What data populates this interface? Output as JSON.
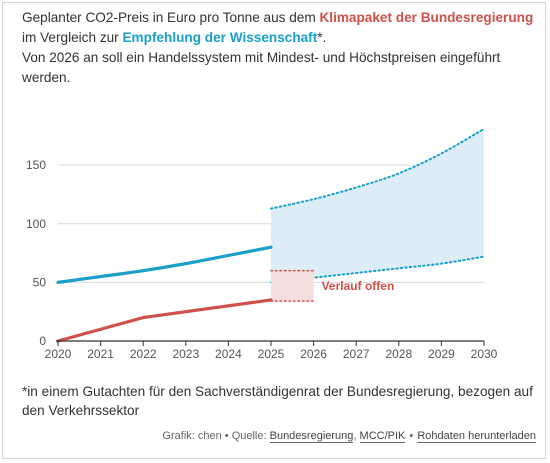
{
  "intro": {
    "line1_pre": "Geplanter CO2-Preis in Euro pro Tonne aus dem ",
    "line1_red": "Klimapaket der Bundesregierung",
    "line1_mid": " im Vergleich zur ",
    "line1_blue": "Empfehlung der Wissenschaft",
    "line1_post": "*.",
    "line2": "Von 2026 an soll ein Handelssystem mit Mindest- und Höchstpreisen eingeführt werden."
  },
  "footnote": "*in einem Gutachten für den Sachverständigenrat der Bundesregierung, bezogen auf den Verkehrssektor",
  "source": {
    "prefix": "Grafik: chen • Quelle: ",
    "link1": "Bundesregierung",
    "sep1": ", ",
    "link2": "MCC/PIK",
    "sep2": " • ",
    "link3": "Rohdaten herunterladen"
  },
  "colors": {
    "government": "#d0504a",
    "science": "#1aa0c8",
    "science_band": "#dcedf8",
    "government_band": "#f6dede",
    "grid": "#d9d9d9"
  },
  "chart_data": {
    "type": "line",
    "x_ticks": [
      "2020",
      "2021",
      "2022",
      "2023",
      "2024",
      "2025",
      "2026",
      "2027",
      "2028",
      "2029",
      "2030"
    ],
    "y_ticks": [
      "0",
      "50",
      "100",
      "150"
    ],
    "xlim": [
      2020,
      2030
    ],
    "ylim": [
      0,
      180
    ],
    "grid": true,
    "series": [
      {
        "key": "science",
        "x": [
          2020,
          2021,
          2022,
          2023,
          2024,
          2025
        ],
        "values": [
          50,
          55,
          60,
          66,
          73,
          80
        ]
      },
      {
        "key": "government",
        "x": [
          2020,
          2022,
          2025
        ],
        "values": [
          0,
          20,
          35
        ]
      }
    ],
    "science_range": {
      "x": [
        2025,
        2026,
        2027,
        2028,
        2029,
        2030
      ],
      "upper": [
        113,
        121,
        131,
        143,
        160,
        181
      ],
      "lower": [
        50,
        54,
        58,
        62,
        66,
        72
      ]
    },
    "government_range": {
      "x": [
        2025,
        2026
      ],
      "upper": [
        60,
        60
      ],
      "lower": [
        34,
        34
      ]
    },
    "annotation": "Verlauf offen"
  }
}
